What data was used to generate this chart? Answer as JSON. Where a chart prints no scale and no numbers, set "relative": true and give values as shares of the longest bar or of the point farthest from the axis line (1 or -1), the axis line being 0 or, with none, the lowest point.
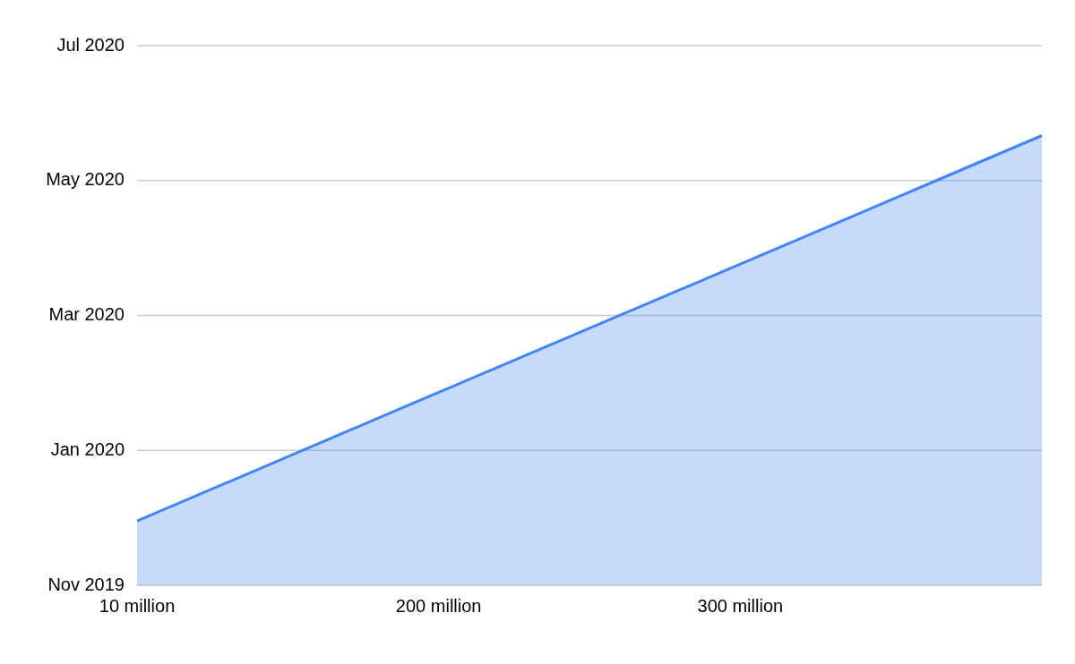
{
  "chart_data": {
    "type": "area",
    "categories": [
      "10 million",
      "200 million",
      "300 million",
      null
    ],
    "series": [
      {
        "color": "#4285f4",
        "values": [
          0.143,
          0.429,
          0.714,
          1
        ]
      }
    ],
    "relative": true,
    "annotations": [
      "Jul 2020",
      "May 2020",
      "Mar 2020",
      "Jan 2020",
      "Nov 2019"
    ],
    "grid": "y",
    "legend": false
  }
}
